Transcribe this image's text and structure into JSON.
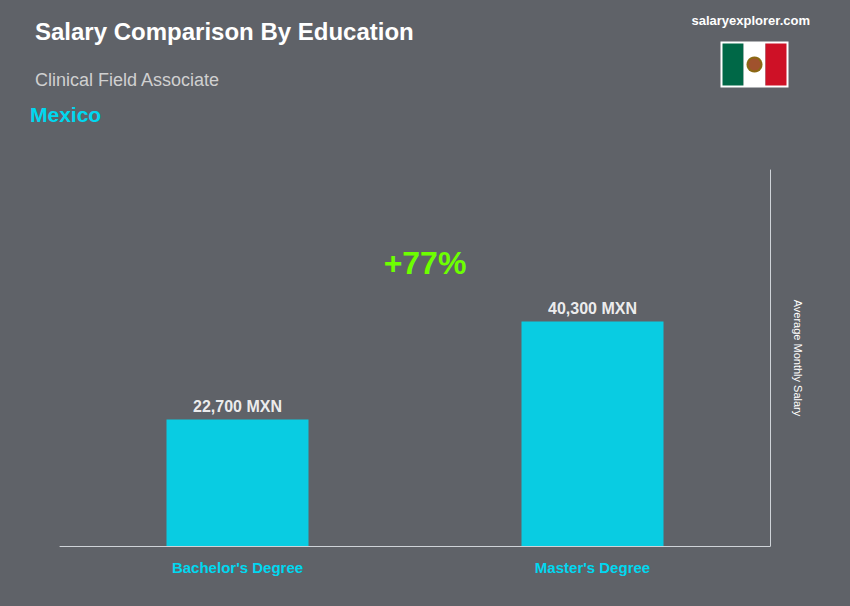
{
  "chart_data": {
    "type": "bar",
    "title": "Salary Comparison By Education",
    "subtitle": "Clinical Field Associate",
    "annotations": [
      "Mexico",
      "+77%",
      "salaryexplorer.com"
    ],
    "ylabel": "Average Monthly Salary",
    "categories": [
      "Bachelor's Degree",
      "Master's Degree"
    ],
    "values": [
      22700,
      40300
    ],
    "value_labels": [
      "22,700 MXN",
      "40,300 MXN"
    ],
    "data_labels": true,
    "color": "#00d8f0",
    "ylim": [
      0,
      67500
    ],
    "grid": false,
    "tick_labels": "x"
  }
}
